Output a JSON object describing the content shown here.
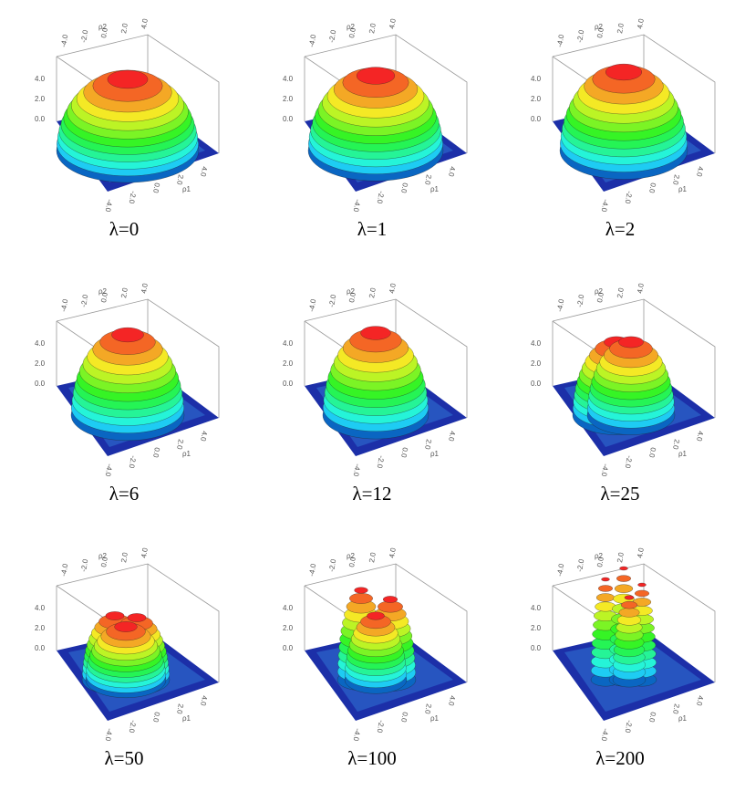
{
  "panels": [
    {
      "label": "λ=0",
      "x_axis_label": "ρ1",
      "y_axis_label": "ρ2",
      "x_ticks": [
        "-4.0",
        "-2.0",
        "0.0",
        "2.0",
        "4.0"
      ],
      "y_ticks": [
        "-4.0",
        "-2.0",
        "0.0",
        "2.0",
        "4.0"
      ],
      "z_ticks": [
        "0.0",
        "2.0",
        "4.0"
      ]
    },
    {
      "label": "λ=1",
      "x_axis_label": "ρ1",
      "y_axis_label": "ρ2",
      "x_ticks": [
        "-4.0",
        "-2.0",
        "0.0",
        "2.0",
        "4.0"
      ],
      "y_ticks": [
        "-4.0",
        "-2.0",
        "0.0",
        "2.0",
        "4.0"
      ],
      "z_ticks": [
        "0.0",
        "2.0",
        "4.0"
      ]
    },
    {
      "label": "λ=2",
      "x_axis_label": "ρ1",
      "y_axis_label": "ρ2",
      "x_ticks": [
        "-4.0",
        "-2.0",
        "0.0",
        "2.0",
        "4.0"
      ],
      "y_ticks": [
        "-4.0",
        "-2.0",
        "0.0",
        "2.0",
        "4.0"
      ],
      "z_ticks": [
        "0.0",
        "2.0",
        "4.0"
      ]
    },
    {
      "label": "λ=6",
      "x_axis_label": "ρ1",
      "y_axis_label": "ρ2",
      "x_ticks": [
        "-4.0",
        "-2.0",
        "0.0",
        "2.0",
        "4.0"
      ],
      "y_ticks": [
        "-4.0",
        "-2.0",
        "0.0",
        "2.0",
        "4.0"
      ],
      "z_ticks": [
        "0.0",
        "2.0",
        "4.0"
      ]
    },
    {
      "label": "λ=12",
      "x_axis_label": "ρ1",
      "y_axis_label": "ρ2",
      "x_ticks": [
        "-4.0",
        "-2.0",
        "0.0",
        "2.0",
        "4.0"
      ],
      "y_ticks": [
        "-4.0",
        "-2.0",
        "0.0",
        "2.0",
        "4.0"
      ],
      "z_ticks": [
        "0.0",
        "2.0",
        "4.0"
      ]
    },
    {
      "label": "λ=25",
      "x_axis_label": "ρ1",
      "y_axis_label": "ρ2",
      "x_ticks": [
        "-4.0",
        "-2.0",
        "0.0",
        "2.0",
        "4.0"
      ],
      "y_ticks": [
        "-4.0",
        "-2.0",
        "0.0",
        "2.0",
        "4.0"
      ],
      "z_ticks": [
        "0.0",
        "2.0",
        "4.0"
      ]
    },
    {
      "label": "λ=50",
      "x_axis_label": "ρ1",
      "y_axis_label": "ρ2",
      "x_ticks": [
        "-4.0",
        "-2.0",
        "0.0",
        "2.0",
        "4.0"
      ],
      "y_ticks": [
        "-4.0",
        "-2.0",
        "0.0",
        "2.0",
        "4.0"
      ],
      "z_ticks": [
        "0.0",
        "2.0",
        "4.0"
      ]
    },
    {
      "label": "λ=100",
      "x_axis_label": "ρ1",
      "y_axis_label": "ρ2",
      "x_ticks": [
        "-4.0",
        "-2.0",
        "0.0",
        "2.0",
        "4.0"
      ],
      "y_ticks": [
        "-4.0",
        "-2.0",
        "0.0",
        "2.0",
        "4.0"
      ],
      "z_ticks": [
        "0.0",
        "2.0",
        "4.0"
      ]
    },
    {
      "label": "λ=200",
      "x_axis_label": "ρ1",
      "y_axis_label": "ρ2",
      "x_ticks": [
        "-4.0",
        "-2.0",
        "0.0",
        "2.0",
        "4.0"
      ],
      "y_ticks": [
        "-4.0",
        "-2.0",
        "0.0",
        "2.0",
        "4.0"
      ],
      "z_ticks": [
        "0.0",
        "2.0",
        "4.0"
      ]
    }
  ]
}
